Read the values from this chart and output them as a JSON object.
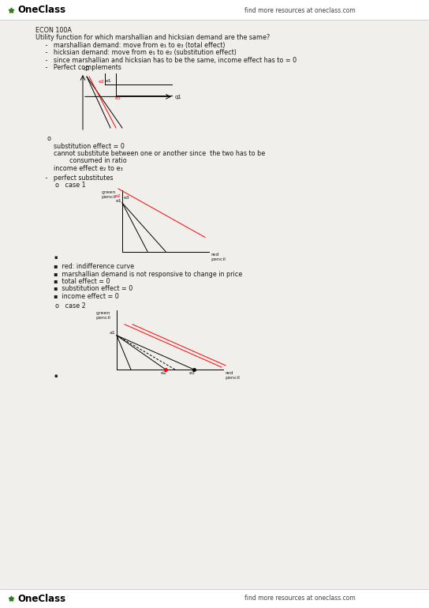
{
  "bg_color": "#f0efeb",
  "header_text": "find more resources at oneclass.com",
  "footer_text": "find more resources at oneclass.com",
  "title": "ECON 100A",
  "body_lines": [
    "Utility function for which marshallian and hicksian demand are the same?",
    "     -   marshallian demand: move from e₁ to e₃ (total effect)",
    "     -   hicksian demand: move from e₁ to e₂ (substitution effect)",
    "     -   since marshallian and hicksian has to be the same, income effect has to = 0",
    "     -   Perfect complements"
  ],
  "bullet_o_lines_1": [
    "substitution effect = 0",
    "cannot substitute between one or another since  the two has to be",
    "        consumed in ratio",
    "income effect e₂ to e₃"
  ],
  "body_lines_2": [
    "     -   perfect substitutes",
    "          o   case 1"
  ],
  "bullet_lines_2": [
    "red: indifference curve",
    "marshallian demand is not responsive to change in price",
    "total effect = 0",
    "substitution effect = 0",
    "income effect = 0"
  ],
  "body_lines_3": [
    "          o   case 2"
  ],
  "font_size": 5.8,
  "text_color": "#1a1a1a"
}
